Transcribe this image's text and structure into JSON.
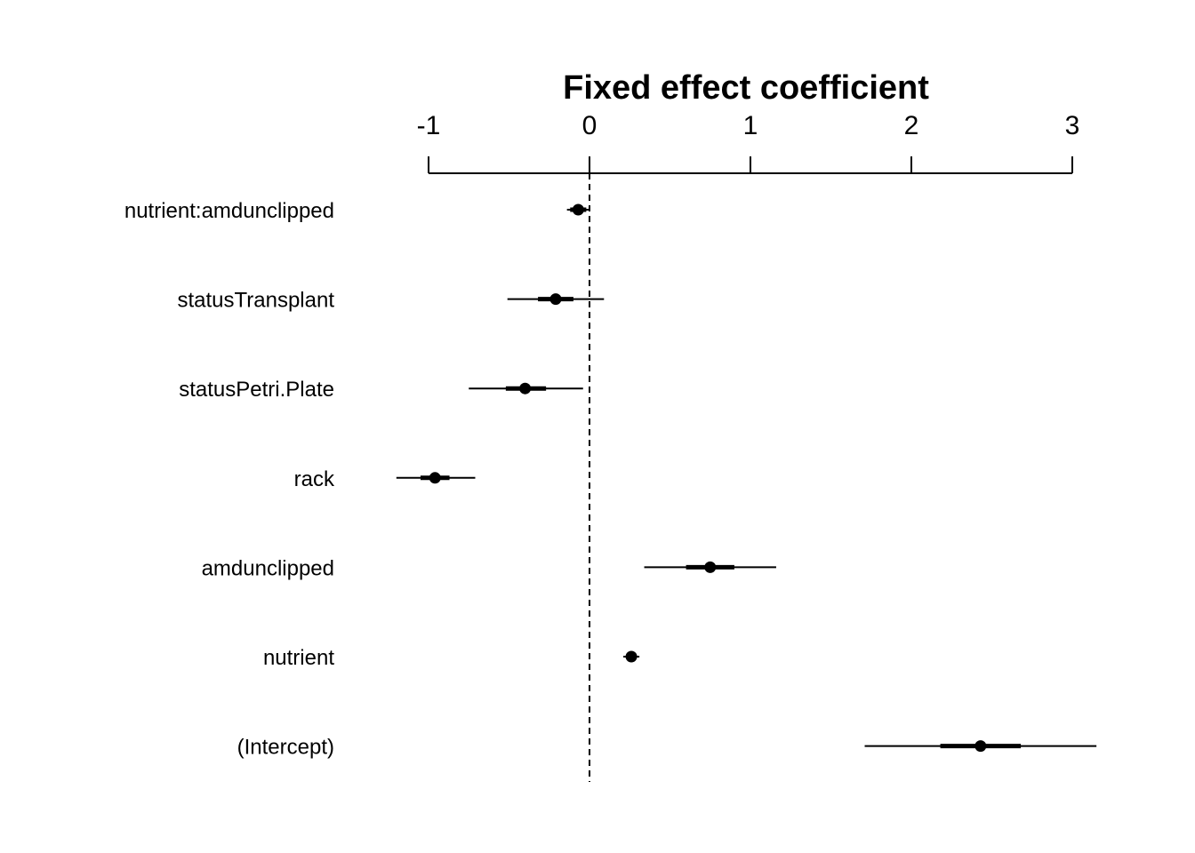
{
  "chart_data": {
    "type": "coefficient-plot",
    "title": "Fixed effect coefficient",
    "xlim": [
      -1,
      3
    ],
    "x_ticks": [
      -1,
      0,
      1,
      2,
      3
    ],
    "x_tick_labels": [
      "-1",
      "0",
      "1",
      "2",
      "3"
    ],
    "reference_line": 0,
    "reference_line_style": "dashed",
    "grid": false,
    "series": [
      {
        "name": "nutrient:amdunclipped",
        "estimate": -0.07,
        "inner": [
          -0.12,
          -0.02
        ],
        "outer": [
          -0.14,
          0.0
        ]
      },
      {
        "name": "statusTransplant",
        "estimate": -0.21,
        "inner": [
          -0.32,
          -0.1
        ],
        "outer": [
          -0.51,
          0.09
        ]
      },
      {
        "name": "statusPetri.Plate",
        "estimate": -0.4,
        "inner": [
          -0.52,
          -0.27
        ],
        "outer": [
          -0.75,
          -0.04
        ]
      },
      {
        "name": "rack",
        "estimate": -0.96,
        "inner": [
          -1.05,
          -0.87
        ],
        "outer": [
          -1.2,
          -0.71
        ]
      },
      {
        "name": "amdunclipped",
        "estimate": 0.75,
        "inner": [
          0.6,
          0.9
        ],
        "outer": [
          0.34,
          1.16
        ]
      },
      {
        "name": "nutrient",
        "estimate": 0.26,
        "inner": [
          0.23,
          0.29
        ],
        "outer": [
          0.21,
          0.31
        ]
      },
      {
        "name": "(Intercept)",
        "estimate": 2.43,
        "inner": [
          2.18,
          2.68
        ],
        "outer": [
          1.71,
          3.15
        ]
      }
    ]
  }
}
